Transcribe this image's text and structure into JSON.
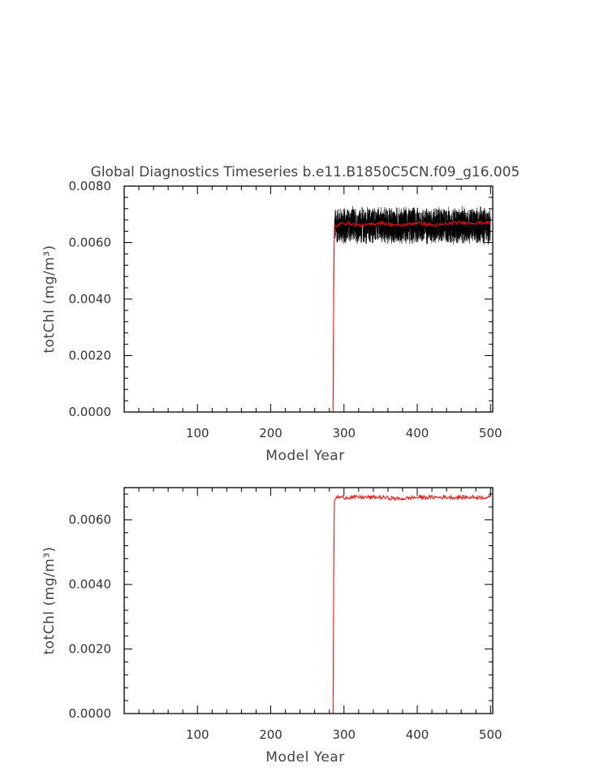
{
  "chart_data": [
    {
      "type": "line",
      "title": "Global Diagnostics Timeseries b.e11.B1850C5CN.f09_g16.005",
      "xlabel": "Model Year",
      "ylabel": "totChl (mg/m³)",
      "xlim": [
        0,
        503
      ],
      "ylim": [
        0.0,
        0.008
      ],
      "x_ticks": [
        "100",
        "200",
        "300",
        "400",
        "500"
      ],
      "y_ticks": [
        "0.0000",
        "0.0020",
        "0.0040",
        "0.0060",
        "0.0080"
      ],
      "grid": false,
      "series": [
        {
          "kind": "monthly",
          "color": "#000000",
          "x": [
            0,
            285,
            286,
            287,
            290,
            300,
            325,
            350,
            375,
            400,
            425,
            450,
            475,
            500
          ],
          "y": [
            0.0,
            0.0,
            0.005,
            0.0066,
            0.0066,
            0.0066,
            0.0066,
            0.0066,
            0.0066,
            0.0066,
            0.0066,
            0.0066,
            0.0066,
            0.0066
          ],
          "y_range_after_spinup": [
            0.0058,
            0.0076
          ]
        },
        {
          "kind": "annual",
          "color": "#ff0000",
          "x": [
            0,
            285,
            286,
            287,
            290,
            300,
            325,
            350,
            375,
            400,
            425,
            450,
            475,
            500
          ],
          "y": [
            0.0,
            0.0,
            0.0044,
            0.0066,
            0.0066,
            0.0067,
            0.0066,
            0.0067,
            0.0066,
            0.0067,
            0.0066,
            0.0067,
            0.0067,
            0.0067
          ]
        }
      ]
    },
    {
      "type": "line",
      "title": "",
      "xlabel": "Model Year",
      "ylabel": "totChl (mg/m³)",
      "xlim": [
        0,
        503
      ],
      "ylim": [
        0.0,
        0.007
      ],
      "x_ticks": [
        "100",
        "200",
        "300",
        "400",
        "500"
      ],
      "y_ticks": [
        "0.0000",
        "0.0020",
        "0.0040",
        "0.0060"
      ],
      "grid": false,
      "series": [
        {
          "kind": "annual",
          "color": "#ff0000",
          "x": [
            0,
            285,
            286,
            287,
            290,
            300,
            325,
            350,
            375,
            400,
            425,
            450,
            475,
            500
          ],
          "y": [
            0.0,
            0.0,
            0.0044,
            0.0066,
            0.0067,
            0.0067,
            0.0067,
            0.0067,
            0.00665,
            0.0067,
            0.0067,
            0.0067,
            0.0067,
            0.0067
          ]
        }
      ]
    }
  ]
}
